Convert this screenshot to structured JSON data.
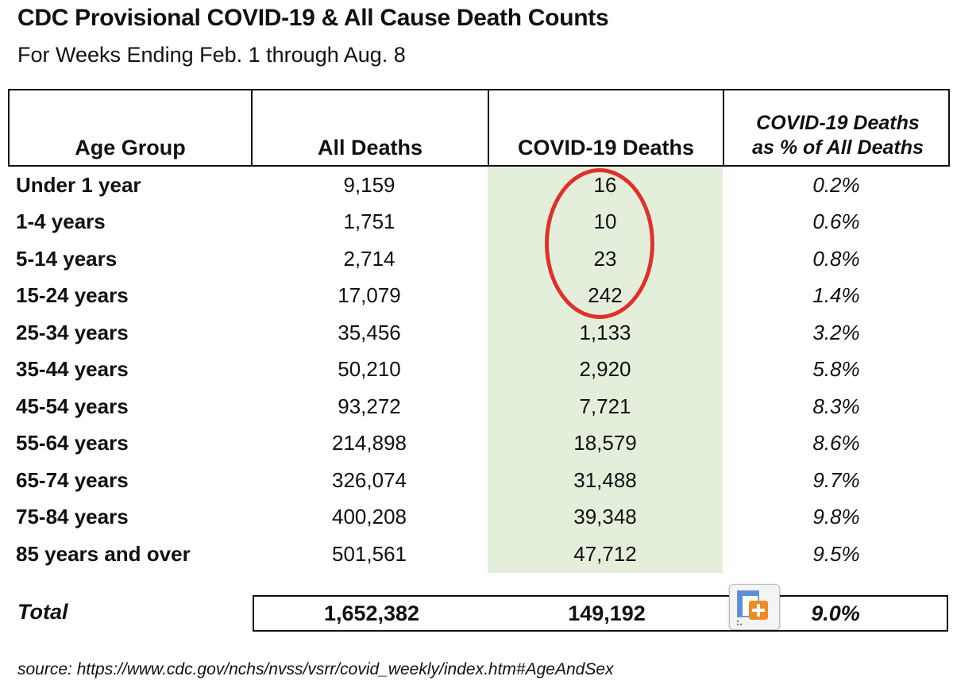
{
  "title": "CDC Provisional COVID-19 & All Cause Death Counts",
  "subtitle": "For Weeks Ending Feb. 1 through Aug. 8",
  "table": {
    "headers": {
      "age": "Age Group",
      "all": "All Deaths",
      "covid": "COVID-19 Deaths",
      "pct_line1": "COVID-19 Deaths",
      "pct_line2": "as % of All Deaths"
    },
    "rows": [
      {
        "age": "Under 1 year",
        "all": "9,159",
        "covid": "16",
        "pct": "0.2%"
      },
      {
        "age": "1-4 years",
        "all": "1,751",
        "covid": "10",
        "pct": "0.6%"
      },
      {
        "age": "5-14 years",
        "all": "2,714",
        "covid": "23",
        "pct": "0.8%"
      },
      {
        "age": "15-24 years",
        "all": "17,079",
        "covid": "242",
        "pct": "1.4%"
      },
      {
        "age": "25-34 years",
        "all": "35,456",
        "covid": "1,133",
        "pct": "3.2%"
      },
      {
        "age": "35-44 years",
        "all": "50,210",
        "covid": "2,920",
        "pct": "5.8%"
      },
      {
        "age": "45-54 years",
        "all": "93,272",
        "covid": "7,721",
        "pct": "8.3%"
      },
      {
        "age": "55-64 years",
        "all": "214,898",
        "covid": "18,579",
        "pct": "8.6%"
      },
      {
        "age": "65-74 years",
        "all": "326,074",
        "covid": "31,488",
        "pct": "9.7%"
      },
      {
        "age": "75-84 years",
        "all": "400,208",
        "covid": "39,348",
        "pct": "9.8%"
      },
      {
        "age": "85 years and over",
        "all": "501,561",
        "covid": "47,712",
        "pct": "9.5%"
      }
    ],
    "total": {
      "label": "Total",
      "all": "1,652,382",
      "covid": "149,192",
      "pct": "9.0%"
    }
  },
  "source": "source: https://www.cdc.gov/nchs/nvss/vsrr/covid_weekly/index.htm#AgeAndSex",
  "colors": {
    "highlight_column": "#e3efdb",
    "circle": "#e0302a",
    "paste_plus": "#f08a24"
  },
  "icons": {
    "paste_options": "paste-options-icon"
  }
}
